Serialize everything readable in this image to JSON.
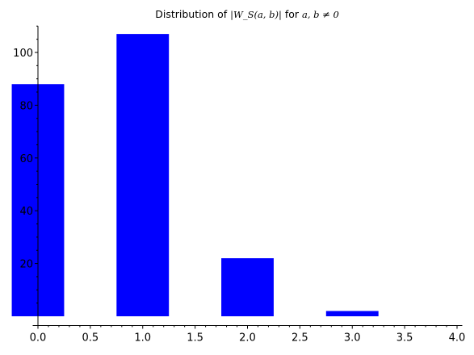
{
  "chart_data": {
    "type": "bar",
    "title": {
      "prefix": "Distribution of ",
      "quantity": "|W_S(a, b)|",
      "connector": " for ",
      "condition": "a, b ≠ 0"
    },
    "xlabel": "",
    "ylabel": "",
    "bar_width": 0.5,
    "x": [
      0,
      1,
      2,
      3
    ],
    "values": [
      88,
      107,
      22,
      2
    ],
    "xlim": [
      -0.05,
      4.05
    ],
    "ylim": [
      -3.5,
      110
    ],
    "bar_base": 0,
    "bar_color": "#0000ff",
    "x_ticks": [
      0.0,
      0.5,
      1.0,
      1.5,
      2.0,
      2.5,
      3.0,
      3.5,
      4.0
    ],
    "x_tick_labels": [
      "0.0",
      "0.5",
      "1.0",
      "1.5",
      "2.0",
      "2.5",
      "3.0",
      "3.5",
      "4.0"
    ],
    "y_ticks": [
      20,
      40,
      60,
      80,
      100
    ],
    "y_tick_labels": [
      "20",
      "40",
      "60",
      "80",
      "100"
    ],
    "grid": false,
    "legend": "none"
  }
}
